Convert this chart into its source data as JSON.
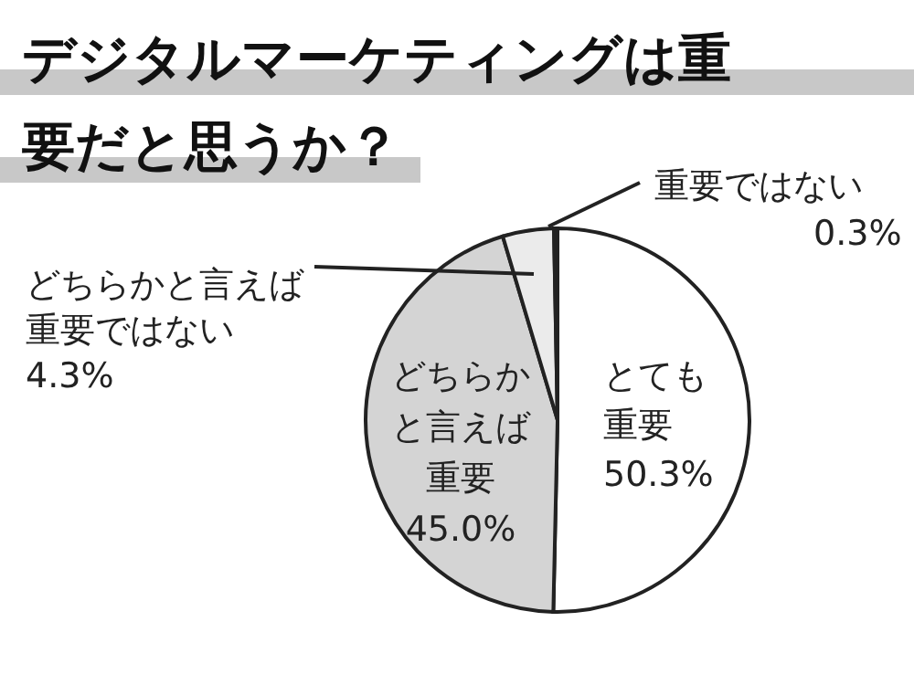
{
  "chart_data": {
    "type": "pie",
    "title": "デジタルマーケティングは重要だと思うか？",
    "categories": [
      "とても重要",
      "どちらかと言えば重要",
      "どちらかと言えば重要ではない",
      "重要ではない"
    ],
    "values": [
      50.3,
      45.0,
      4.3,
      0.3
    ],
    "colors": [
      "#ffffff",
      "#d4d4d4",
      "#ebebeb",
      "#222222"
    ],
    "value_labels": [
      "50.3%",
      "45.0%",
      "4.3%",
      "0.3%"
    ],
    "legend": false
  }
}
